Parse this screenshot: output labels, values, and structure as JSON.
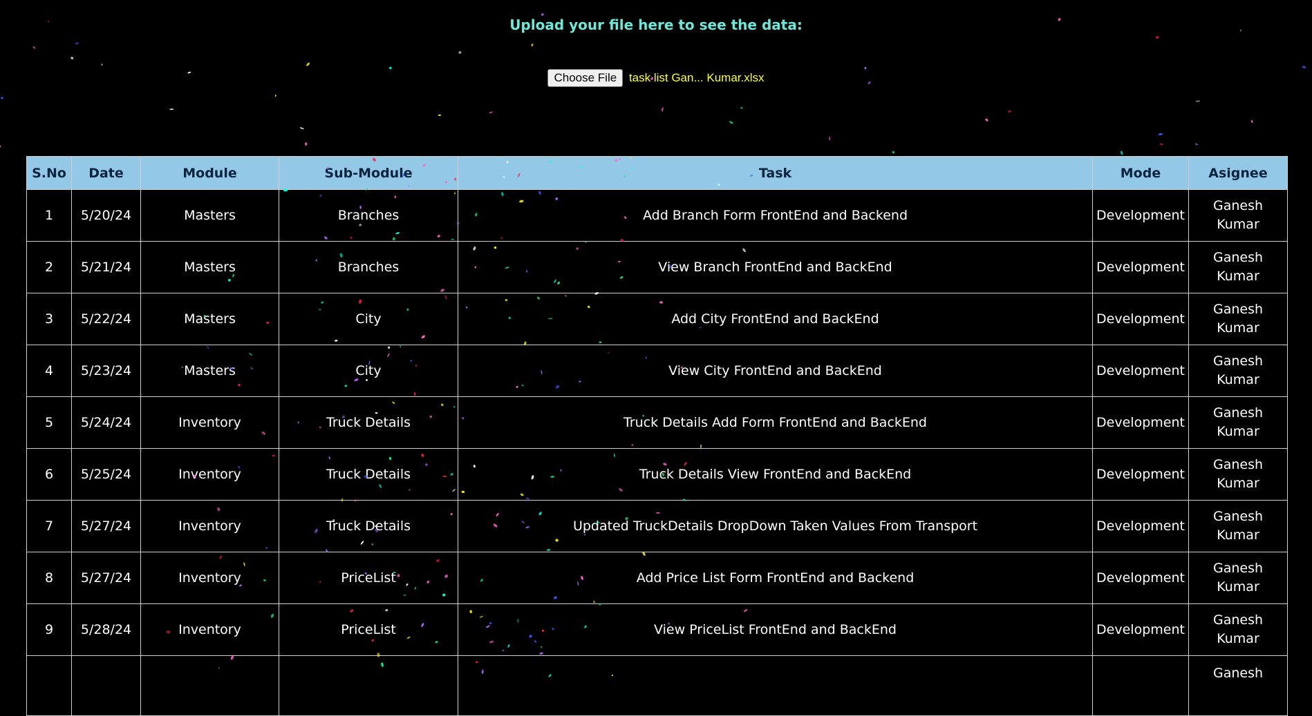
{
  "upload": {
    "heading": "Upload your file here to see the data:",
    "button_label": "Choose File",
    "file_name": "task list Gan... Kumar.xlsx"
  },
  "table": {
    "headers": [
      "S.No",
      "Date",
      "Module",
      "Sub-Module",
      "Task",
      "Mode",
      "Asignee"
    ],
    "rows": [
      [
        "1",
        "5/20/24",
        "Masters",
        "Branches",
        "Add Branch Form FrontEnd and Backend",
        "Development",
        "Ganesh Kumar"
      ],
      [
        "2",
        "5/21/24",
        "Masters",
        "Branches",
        "View Branch FrontEnd and BackEnd",
        "Development",
        "Ganesh Kumar"
      ],
      [
        "3",
        "5/22/24",
        "Masters",
        "City",
        "Add City FrontEnd and BackEnd",
        "Development",
        "Ganesh Kumar"
      ],
      [
        "4",
        "5/23/24",
        "Masters",
        "City",
        "View City FrontEnd and BackEnd",
        "Development",
        "Ganesh Kumar"
      ],
      [
        "5",
        "5/24/24",
        "Inventory",
        "Truck Details",
        "Truck Details Add Form FrontEnd and BackEnd",
        "Development",
        "Ganesh Kumar"
      ],
      [
        "6",
        "5/25/24",
        "Inventory",
        "Truck Details",
        "Truck Details View FrontEnd and BackEnd",
        "Development",
        "Ganesh Kumar"
      ],
      [
        "7",
        "5/27/24",
        "Inventory",
        "Truck Details",
        "Updated TruckDetails DropDown Taken Values From Transport",
        "Development",
        "Ganesh Kumar"
      ],
      [
        "8",
        "5/27/24",
        "Inventory",
        "PriceList",
        "Add Price List Form FrontEnd and Backend",
        "Development",
        "Ganesh Kumar"
      ],
      [
        "9",
        "5/28/24",
        "Inventory",
        "PriceList",
        "View PriceList FrontEnd and BackEnd",
        "Development",
        "Ganesh Kumar"
      ],
      [
        "",
        "",
        "",
        "",
        "",
        "",
        "Ganesh"
      ]
    ]
  },
  "colors": {
    "background": "#000000",
    "heading": "#6ee7d8",
    "file_name": "#ffff33",
    "header_bg": "#93c9e6",
    "header_text": "#0c2440",
    "grid": "#d0d0d0",
    "confetti": [
      "#ff2040",
      "#22e07a",
      "#ffee22",
      "#3a5bff",
      "#00ffe0",
      "#ff66cc",
      "#b060ff",
      "#ffffff"
    ]
  }
}
